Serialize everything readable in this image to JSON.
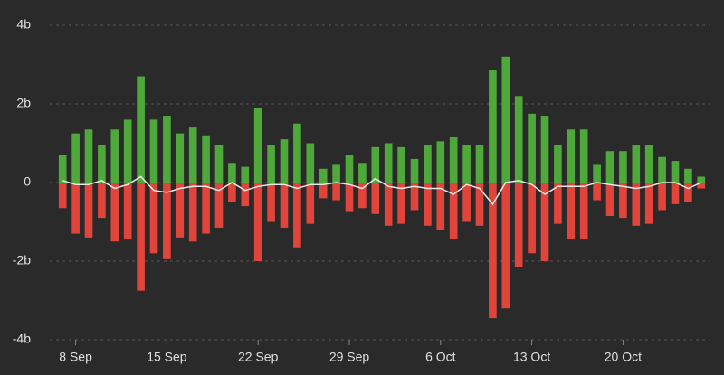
{
  "chart_data": {
    "type": "bar",
    "categories": [
      null,
      "8 Sep",
      null,
      null,
      null,
      null,
      null,
      null,
      "15 Sep",
      null,
      null,
      null,
      null,
      null,
      null,
      "22 Sep",
      null,
      null,
      null,
      null,
      null,
      null,
      "29 Sep",
      null,
      null,
      null,
      null,
      null,
      null,
      "6 Oct",
      null,
      null,
      null,
      null,
      null,
      null,
      "13 Oct",
      null,
      null,
      null,
      null,
      null,
      null,
      "20 Oct",
      null,
      null,
      null,
      null,
      null,
      null
    ],
    "series": [
      {
        "color": "#4fa83a",
        "values": [
          0.7,
          1.25,
          1.35,
          0.95,
          1.35,
          1.6,
          2.7,
          1.6,
          1.7,
          1.25,
          1.4,
          1.2,
          0.95,
          0.5,
          0.4,
          1.9,
          0.95,
          1.1,
          1.5,
          1.0,
          0.35,
          0.45,
          0.7,
          0.5,
          0.9,
          1.0,
          0.9,
          0.6,
          0.95,
          1.05,
          1.15,
          0.95,
          0.95,
          2.85,
          3.2,
          2.2,
          1.75,
          1.7,
          0.95,
          1.35,
          1.35,
          0.45,
          0.8,
          0.8,
          0.95,
          0.95,
          0.65,
          0.55,
          0.35,
          0.15
        ]
      },
      {
        "color": "#e0443a",
        "values": [
          -0.65,
          -1.3,
          -1.4,
          -0.9,
          -1.5,
          -1.45,
          -2.75,
          -1.8,
          -1.95,
          -1.4,
          -1.5,
          -1.3,
          -1.15,
          -0.5,
          -0.6,
          -2.0,
          -1.0,
          -1.15,
          -1.65,
          -1.05,
          -0.4,
          -0.45,
          -0.75,
          -0.65,
          -0.8,
          -1.1,
          -1.05,
          -0.7,
          -1.1,
          -1.2,
          -1.45,
          -1.0,
          -1.1,
          -3.45,
          -3.2,
          -2.15,
          -1.8,
          -2.0,
          -1.05,
          -1.45,
          -1.45,
          -0.45,
          -0.85,
          -0.9,
          -1.1,
          -1.05,
          -0.7,
          -0.55,
          -0.5,
          -0.15
        ]
      },
      {
        "color": "#e8e8e8",
        "values": [
          0.05,
          -0.05,
          -0.05,
          0.05,
          -0.15,
          -0.05,
          0.15,
          -0.2,
          -0.25,
          -0.15,
          -0.1,
          -0.1,
          -0.2,
          0,
          -0.2,
          -0.1,
          -0.05,
          -0.05,
          -0.15,
          -0.05,
          -0.05,
          0,
          -0.05,
          -0.15,
          0.1,
          -0.1,
          -0.15,
          -0.1,
          -0.15,
          -0.15,
          -0.3,
          -0.05,
          -0.15,
          -0.55,
          0,
          0.05,
          -0.05,
          -0.3,
          -0.1,
          -0.1,
          -0.1,
          0,
          -0.05,
          -0.1,
          -0.15,
          -0.1,
          0,
          0,
          -0.15,
          0
        ]
      }
    ],
    "ylim": [
      -4,
      4
    ],
    "yticks": [
      {
        "value": -4,
        "label": "-4b"
      },
      {
        "value": -2,
        "label": "-2b"
      },
      0,
      {
        "value": 2,
        "label": "2b"
      },
      {
        "value": 4,
        "label": "4b"
      }
    ],
    "grid": true
  }
}
